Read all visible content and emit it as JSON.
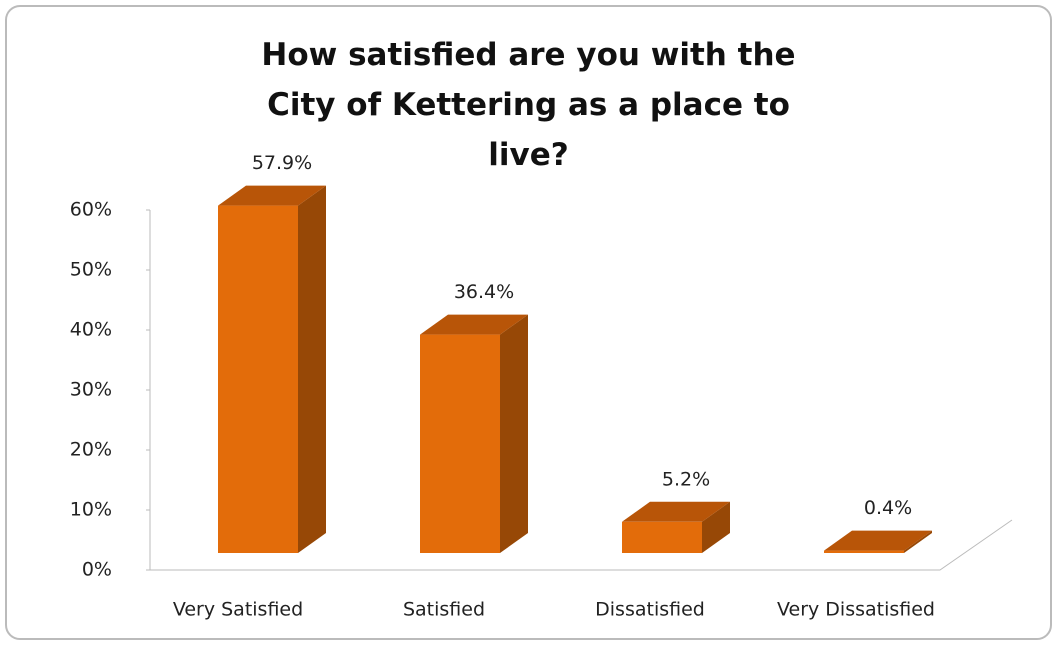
{
  "chart_data": {
    "type": "bar3d",
    "title": "How satisfied are you with the City of Kettering as a place to live?",
    "categories": [
      "Very Satisfied",
      "Satisfied",
      "Dissatisfied",
      "Very Dissatisfied"
    ],
    "values": [
      57.9,
      36.4,
      5.2,
      0.4
    ],
    "value_labels": [
      "57.9%",
      "36.4%",
      "5.2%",
      "0.4%"
    ],
    "color": "#e36c0a",
    "ylim": [
      0,
      60
    ],
    "yticks": [
      {
        "value": 0,
        "label": "0%"
      },
      {
        "value": 10,
        "label": "10%"
      },
      {
        "value": 20,
        "label": "20%"
      },
      {
        "value": 30,
        "label": "30%"
      },
      {
        "value": 40,
        "label": "40%"
      },
      {
        "value": 50,
        "label": "50%"
      },
      {
        "value": 60,
        "label": "60%"
      }
    ]
  }
}
